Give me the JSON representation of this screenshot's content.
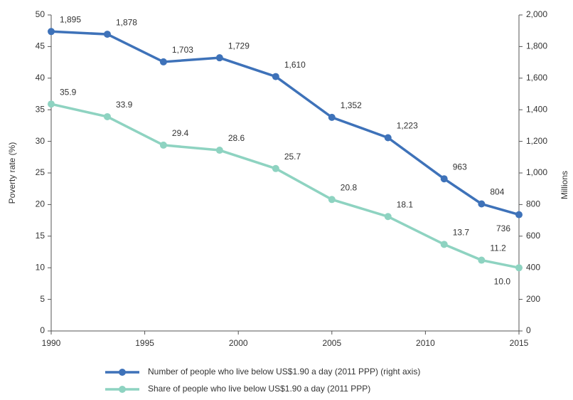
{
  "chart_data": {
    "type": "line",
    "x": [
      1990,
      1993,
      1996,
      1999,
      2002,
      2005,
      2008,
      2011,
      2013,
      2015
    ],
    "xlim": [
      1990,
      2015
    ],
    "xticks": [
      1990,
      1995,
      2000,
      2005,
      2010,
      2015
    ],
    "ylabel": "Poverty rate (%)",
    "y2label": "Millions",
    "ylim": [
      0,
      50
    ],
    "yticks": [
      0,
      5,
      10,
      15,
      20,
      25,
      30,
      35,
      40,
      45,
      50
    ],
    "y2lim": [
      0,
      2000
    ],
    "y2ticks": [
      0,
      200,
      400,
      600,
      800,
      {
        "value": 1000,
        "label": "1,000"
      },
      {
        "value": 1200,
        "label": "1,200"
      },
      {
        "value": 1400,
        "label": "1,400"
      },
      {
        "value": 1600,
        "label": "1,600"
      },
      {
        "value": 1800,
        "label": "1,800"
      },
      {
        "value": 2000,
        "label": "2,000"
      }
    ],
    "series": [
      {
        "name": "Number of people who live below US$1.90 a day (2011 PPP) (right axis)",
        "color": "#3e72b9",
        "axis": "y2",
        "values": [
          1895,
          1878,
          1703,
          1729,
          1610,
          1352,
          1223,
          963,
          804,
          736
        ],
        "value_labels": [
          "1,895",
          "1,878",
          "1,703",
          "1,729",
          "1,610",
          "1,352",
          "1,223",
          "963",
          "804",
          "736"
        ]
      },
      {
        "name": "Share of people who live below US$1.90 a day (2011 PPP)",
        "color": "#8ed3c1",
        "axis": "y",
        "values": [
          35.9,
          33.9,
          29.4,
          28.6,
          25.7,
          20.8,
          18.1,
          13.7,
          11.2,
          10.0
        ],
        "value_labels": [
          "35.9",
          "33.9",
          "29.4",
          "28.6",
          "25.7",
          "20.8",
          "18.1",
          "13.7",
          "11.2",
          "10.0"
        ]
      }
    ]
  }
}
